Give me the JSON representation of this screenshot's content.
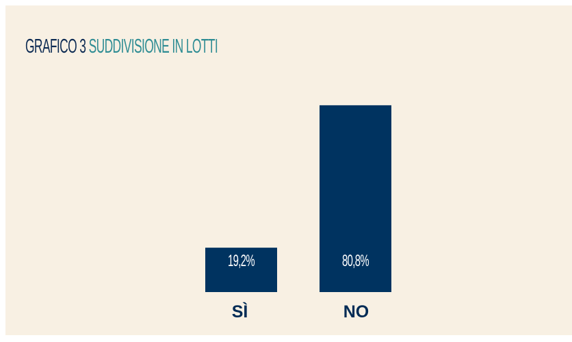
{
  "title": {
    "prefix": "GRAFICO 3",
    "text": "SUDDIVISIONE IN LOTTI"
  },
  "colors": {
    "background": "#f8f0e3",
    "bar": "#003360",
    "title_prefix": "#0d2b53",
    "title_suffix": "#2e8c93",
    "bar_label": "#ffffff",
    "category_label": "#002b55"
  },
  "chart_data": {
    "type": "bar",
    "title": "GRAFICO 3 SUDDIVISIONE IN LOTTI",
    "categories": [
      "SÌ",
      "NO"
    ],
    "values": [
      19.2,
      80.8
    ],
    "value_labels": [
      "19,2%",
      "80,8%"
    ],
    "ylim": [
      0,
      100
    ],
    "grid": false,
    "legend": "none"
  }
}
